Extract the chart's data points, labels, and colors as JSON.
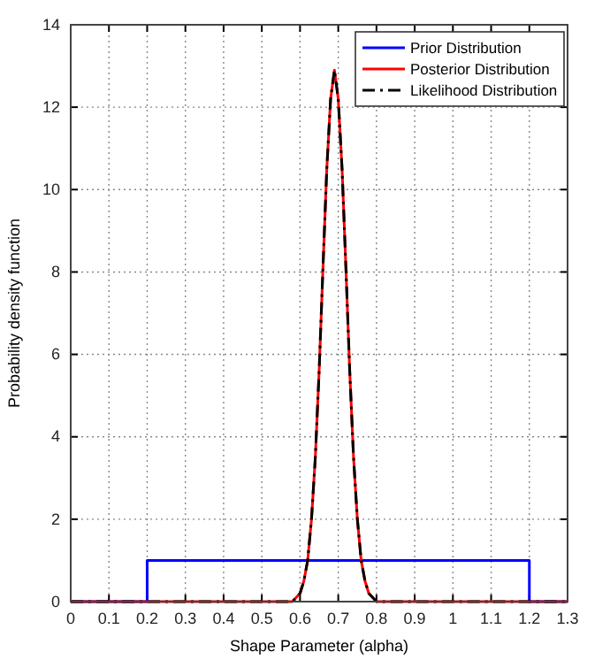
{
  "chart_data": {
    "type": "line",
    "xlabel": "Shape Parameter (alpha)",
    "ylabel": "Probability density function",
    "xlim": [
      0,
      1.3
    ],
    "xticks": [
      0,
      0.1,
      0.2,
      0.3,
      0.4,
      0.5,
      0.6,
      0.7,
      0.8,
      0.9,
      1,
      1.1,
      1.2,
      1.3
    ],
    "ylim": [
      0,
      14
    ],
    "yticks": [
      0,
      2,
      4,
      6,
      8,
      10,
      12,
      14
    ],
    "grid": true,
    "legend": "top right",
    "marker": "none",
    "series": [
      {
        "name": "Prior Distribution",
        "color": "#0000ff",
        "line_style": "solid",
        "x": [
          0,
          0.2,
          0.2,
          1.2,
          1.2,
          1.3
        ],
        "values": [
          0,
          0,
          1,
          1,
          0,
          0
        ]
      },
      {
        "name": "Posterior Distribution",
        "color": "#ff0000",
        "line_style": "solid",
        "x": [
          0,
          0.58,
          0.59,
          0.6,
          0.61,
          0.62,
          0.63,
          0.64,
          0.65,
          0.66,
          0.67,
          0.68,
          0.69,
          0.7,
          0.71,
          0.72,
          0.73,
          0.74,
          0.75,
          0.76,
          0.77,
          0.78,
          0.79,
          0.8,
          1.3
        ],
        "values": [
          0,
          0,
          0.1,
          0.2,
          0.5,
          1.0,
          2.0,
          3.5,
          5.6,
          8.1,
          10.5,
          12.2,
          12.9,
          12.2,
          10.5,
          8.1,
          5.6,
          3.5,
          2.0,
          1.0,
          0.5,
          0.2,
          0.1,
          0,
          0
        ]
      },
      {
        "name": "Likelihood Distribution",
        "color": "#000000",
        "line_style": "dashdot",
        "x": [
          0,
          0.58,
          0.59,
          0.6,
          0.61,
          0.62,
          0.63,
          0.64,
          0.65,
          0.66,
          0.67,
          0.68,
          0.69,
          0.7,
          0.71,
          0.72,
          0.73,
          0.74,
          0.75,
          0.76,
          0.77,
          0.78,
          0.79,
          0.8,
          1.3
        ],
        "values": [
          0,
          0,
          0.1,
          0.2,
          0.5,
          1.0,
          2.0,
          3.5,
          5.6,
          8.1,
          10.5,
          12.2,
          12.9,
          12.2,
          10.5,
          8.1,
          5.6,
          3.5,
          2.0,
          1.0,
          0.5,
          0.2,
          0.1,
          0,
          0
        ]
      }
    ]
  }
}
